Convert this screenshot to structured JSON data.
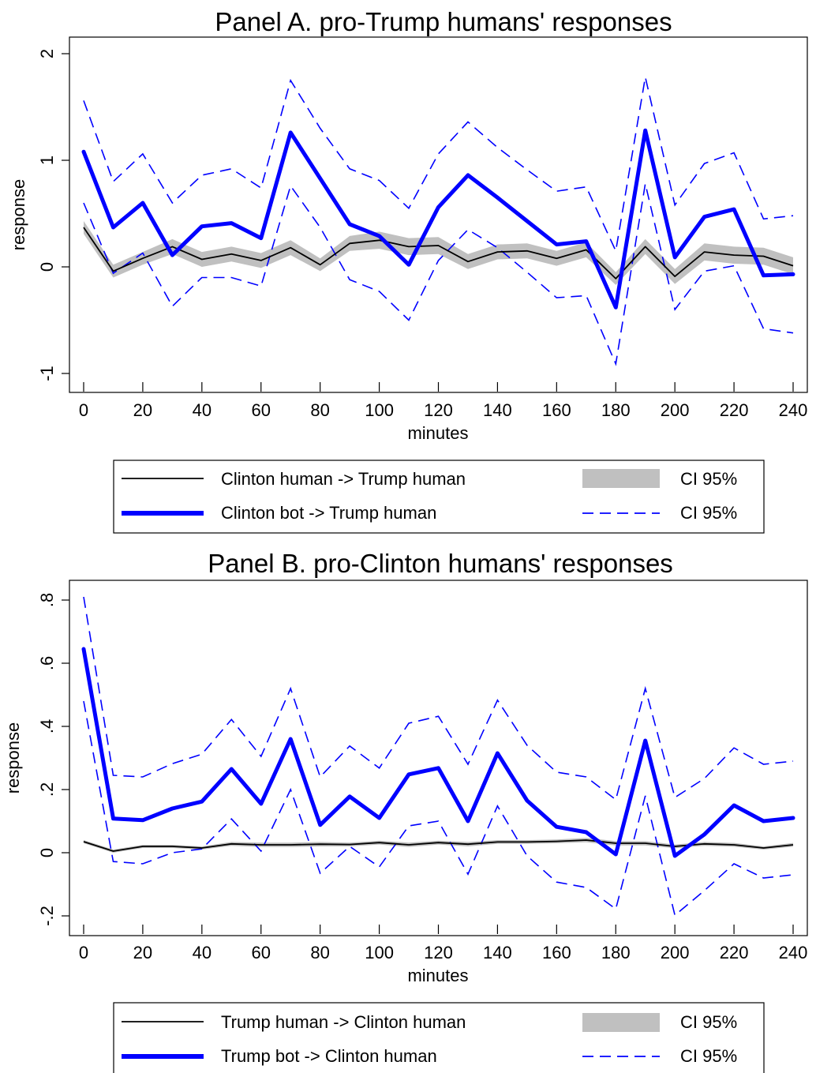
{
  "chart_data": [
    {
      "type": "line",
      "title": "Panel A. pro-Trump humans' responses",
      "xlabel": "minutes",
      "ylabel": "response",
      "xlim": [
        0,
        240
      ],
      "ylim": [
        -1,
        2
      ],
      "x_ticks": [
        0,
        20,
        40,
        60,
        80,
        100,
        120,
        140,
        160,
        180,
        200,
        220,
        240
      ],
      "x_tick_labels": [
        "0",
        "20",
        "40",
        "60",
        "80",
        "100",
        "120",
        "140",
        "160",
        "180",
        "200",
        "220",
        "240"
      ],
      "y_ticks": [
        -1,
        0,
        1,
        2
      ],
      "y_tick_labels": [
        "-1",
        "0",
        "1",
        "2"
      ],
      "grid": false,
      "legend_position": "bottom",
      "x": [
        0,
        10,
        20,
        30,
        40,
        50,
        60,
        70,
        80,
        90,
        100,
        110,
        120,
        130,
        140,
        150,
        160,
        170,
        180,
        190,
        200,
        210,
        220,
        230,
        240
      ],
      "series": [
        {
          "name": "Clinton human -> Trump human",
          "style": "thin-solid",
          "color": "#000000",
          "values": [
            0.37,
            -0.04,
            0.08,
            0.19,
            0.07,
            0.12,
            0.06,
            0.18,
            0.02,
            0.22,
            0.25,
            0.19,
            0.2,
            0.05,
            0.14,
            0.15,
            0.08,
            0.16,
            -0.11,
            0.19,
            -0.09,
            0.14,
            0.11,
            0.1,
            0.01
          ],
          "ci_name": "CI 95%",
          "ci_style": "shaded-band",
          "ci_color": "#c0c0c0",
          "ci_lower": [
            0.31,
            -0.1,
            0.02,
            0.12,
            0.0,
            0.05,
            -0.01,
            0.11,
            -0.04,
            0.15,
            0.17,
            0.11,
            0.12,
            -0.02,
            0.07,
            0.08,
            0.01,
            0.09,
            -0.17,
            0.12,
            -0.16,
            0.06,
            0.03,
            0.02,
            -0.07
          ],
          "ci_upper": [
            0.43,
            0.02,
            0.14,
            0.26,
            0.14,
            0.19,
            0.13,
            0.25,
            0.08,
            0.29,
            0.33,
            0.27,
            0.28,
            0.12,
            0.21,
            0.22,
            0.15,
            0.23,
            -0.05,
            0.26,
            -0.02,
            0.22,
            0.19,
            0.18,
            0.09
          ]
        },
        {
          "name": "Clinton bot -> Trump human",
          "style": "thick-solid",
          "color": "#0000ff",
          "values": [
            1.08,
            0.37,
            0.6,
            0.11,
            0.38,
            0.41,
            0.27,
            1.26,
            0.83,
            0.4,
            0.29,
            0.02,
            0.56,
            0.86,
            0.65,
            0.43,
            0.21,
            0.24,
            -0.38,
            1.28,
            0.09,
            0.47,
            0.54,
            -0.08,
            -0.07
          ],
          "ci_name": "CI 95%",
          "ci_style": "dashed",
          "ci_color": "#0000ff",
          "ci_lower": [
            0.6,
            -0.06,
            0.13,
            -0.37,
            -0.1,
            -0.1,
            -0.18,
            0.76,
            0.37,
            -0.12,
            -0.23,
            -0.5,
            0.06,
            0.35,
            0.18,
            -0.05,
            -0.29,
            -0.27,
            -0.91,
            0.78,
            -0.4,
            -0.04,
            0.01,
            -0.58,
            -0.62
          ],
          "ci_upper": [
            1.56,
            0.8,
            1.06,
            0.6,
            0.86,
            0.92,
            0.74,
            1.75,
            1.3,
            0.92,
            0.81,
            0.55,
            1.06,
            1.36,
            1.12,
            0.91,
            0.71,
            0.75,
            0.15,
            1.78,
            0.58,
            0.97,
            1.07,
            0.45,
            0.48
          ]
        }
      ]
    },
    {
      "type": "line",
      "title": "Panel B. pro-Clinton humans' responses",
      "xlabel": "minutes",
      "ylabel": "response",
      "xlim": [
        0,
        240
      ],
      "ylim": [
        -0.2,
        0.8
      ],
      "x_ticks": [
        0,
        20,
        40,
        60,
        80,
        100,
        120,
        140,
        160,
        180,
        200,
        220,
        240
      ],
      "x_tick_labels": [
        "0",
        "20",
        "40",
        "60",
        "80",
        "100",
        "120",
        "140",
        "160",
        "180",
        "200",
        "220",
        "240"
      ],
      "y_ticks": [
        -0.2,
        0,
        0.2,
        0.4,
        0.6,
        0.8
      ],
      "y_tick_labels": [
        "-.2",
        "0",
        ".2",
        ".4",
        ".6",
        ".8"
      ],
      "grid": false,
      "legend_position": "bottom",
      "x": [
        0,
        10,
        20,
        30,
        40,
        50,
        60,
        70,
        80,
        90,
        100,
        110,
        120,
        130,
        140,
        150,
        160,
        170,
        180,
        190,
        200,
        210,
        220,
        230,
        240
      ],
      "series": [
        {
          "name": "Trump human -> Clinton human",
          "style": "thin-solid",
          "color": "#000000",
          "values": [
            0.035,
            0.005,
            0.02,
            0.02,
            0.015,
            0.028,
            0.025,
            0.025,
            0.027,
            0.026,
            0.032,
            0.025,
            0.032,
            0.027,
            0.034,
            0.034,
            0.036,
            0.04,
            0.03,
            0.03,
            0.02,
            0.028,
            0.025,
            0.015,
            0.025
          ],
          "ci_name": "CI 95%",
          "ci_style": "shaded-band",
          "ci_color": "#c0c0c0",
          "ci_lower": [
            0.03,
            0.0,
            0.015,
            0.015,
            0.01,
            0.022,
            0.018,
            0.018,
            0.02,
            0.02,
            0.026,
            0.018,
            0.026,
            0.02,
            0.028,
            0.028,
            0.03,
            0.033,
            0.023,
            0.023,
            0.014,
            0.022,
            0.019,
            0.01,
            0.019
          ],
          "ci_upper": [
            0.04,
            0.01,
            0.025,
            0.025,
            0.02,
            0.034,
            0.032,
            0.032,
            0.034,
            0.032,
            0.038,
            0.032,
            0.038,
            0.034,
            0.04,
            0.04,
            0.042,
            0.047,
            0.037,
            0.037,
            0.026,
            0.034,
            0.031,
            0.02,
            0.031
          ]
        },
        {
          "name": "Trump bot -> Clinton human",
          "style": "thick-solid",
          "color": "#0000ff",
          "values": [
            0.645,
            0.108,
            0.103,
            0.14,
            0.162,
            0.265,
            0.155,
            0.36,
            0.088,
            0.178,
            0.11,
            0.248,
            0.268,
            0.1,
            0.315,
            0.165,
            0.082,
            0.065,
            -0.005,
            0.355,
            -0.01,
            0.058,
            0.15,
            0.1,
            0.11
          ],
          "ci_name": "CI 95%",
          "ci_style": "dashed",
          "ci_color": "#0000ff",
          "ci_lower": [
            0.48,
            -0.028,
            -0.035,
            0.0,
            0.012,
            0.107,
            0.005,
            0.2,
            -0.065,
            0.02,
            -0.045,
            0.085,
            0.1,
            -0.068,
            0.148,
            -0.01,
            -0.093,
            -0.11,
            -0.178,
            0.18,
            -0.198,
            -0.12,
            -0.035,
            -0.08,
            -0.07
          ],
          "ci_upper": [
            0.81,
            0.245,
            0.24,
            0.282,
            0.312,
            0.422,
            0.305,
            0.52,
            0.24,
            0.338,
            0.268,
            0.41,
            0.432,
            0.28,
            0.483,
            0.34,
            0.255,
            0.24,
            0.168,
            0.52,
            0.175,
            0.235,
            0.332,
            0.28,
            0.29
          ]
        }
      ]
    }
  ]
}
